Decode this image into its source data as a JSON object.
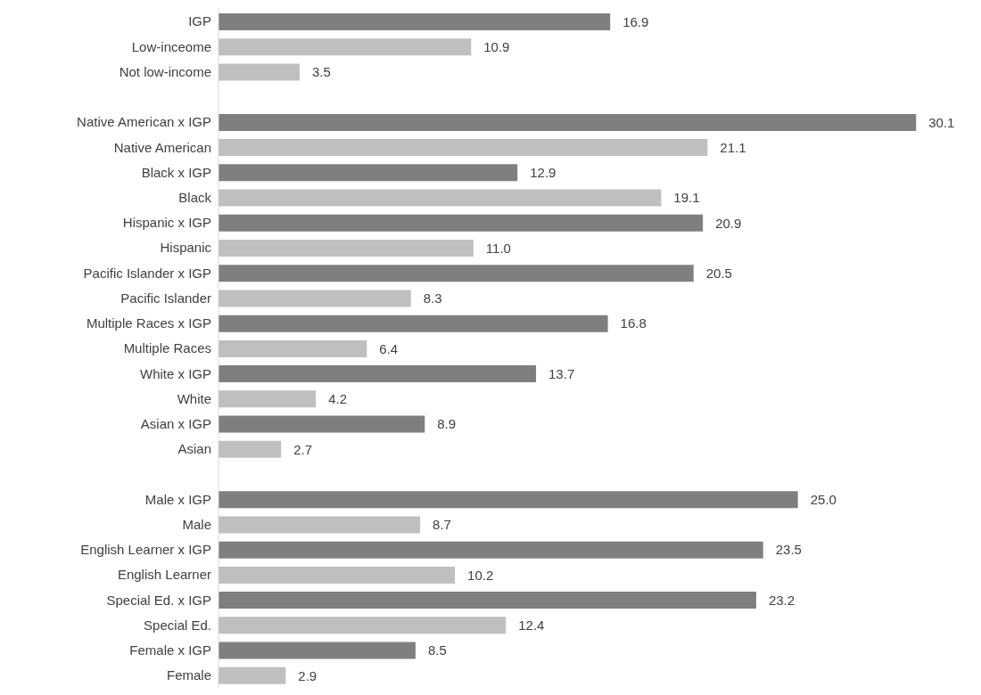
{
  "chart_data": {
    "type": "bar",
    "orientation": "horizontal",
    "categories": [
      "IGP",
      "Low-inceome",
      "Not low-income",
      null,
      "Native American x IGP",
      "Native American",
      "Black x IGP",
      "Black",
      "Hispanic x IGP",
      "Hispanic",
      "Pacific Islander x IGP",
      "Pacific Islander",
      "Multiple Races x IGP",
      "Multiple Races",
      "White x IGP",
      "White",
      "Asian x IGP",
      "Asian",
      null,
      "Male x IGP",
      "Male",
      "English Learner x IGP",
      "English Learner",
      "Special Ed. x IGP",
      "Special Ed.",
      "Female x IGP",
      "Female"
    ],
    "values": [
      16.9,
      10.9,
      3.5,
      null,
      30.1,
      21.1,
      12.9,
      19.1,
      20.9,
      11.0,
      20.5,
      8.3,
      16.8,
      6.4,
      13.7,
      4.2,
      8.9,
      2.7,
      null,
      25.0,
      8.7,
      23.5,
      10.2,
      23.2,
      12.4,
      8.5,
      2.9
    ],
    "value_labels": [
      "16.9",
      "10.9",
      "3.5",
      null,
      "30.1",
      "21.1",
      "12.9",
      "19.1",
      "20.9",
      "11.0",
      "20.5",
      "8.3",
      "16.8",
      "6.4",
      "13.7",
      "4.2",
      "8.9",
      "2.7",
      null,
      "25.0",
      "8.7",
      "23.5",
      "10.2",
      "23.2",
      "12.4",
      "8.5",
      "2.9"
    ],
    "colors": [
      "#7f7f7f",
      "#bfbfbf",
      "#bfbfbf",
      null,
      "#7f7f7f",
      "#bfbfbf",
      "#7f7f7f",
      "#bfbfbf",
      "#7f7f7f",
      "#bfbfbf",
      "#7f7f7f",
      "#bfbfbf",
      "#7f7f7f",
      "#bfbfbf",
      "#7f7f7f",
      "#bfbfbf",
      "#7f7f7f",
      "#bfbfbf",
      null,
      "#7f7f7f",
      "#bfbfbf",
      "#7f7f7f",
      "#bfbfbf",
      "#7f7f7f",
      "#bfbfbf",
      "#7f7f7f",
      "#bfbfbf"
    ],
    "grid": false,
    "legend": false
  }
}
